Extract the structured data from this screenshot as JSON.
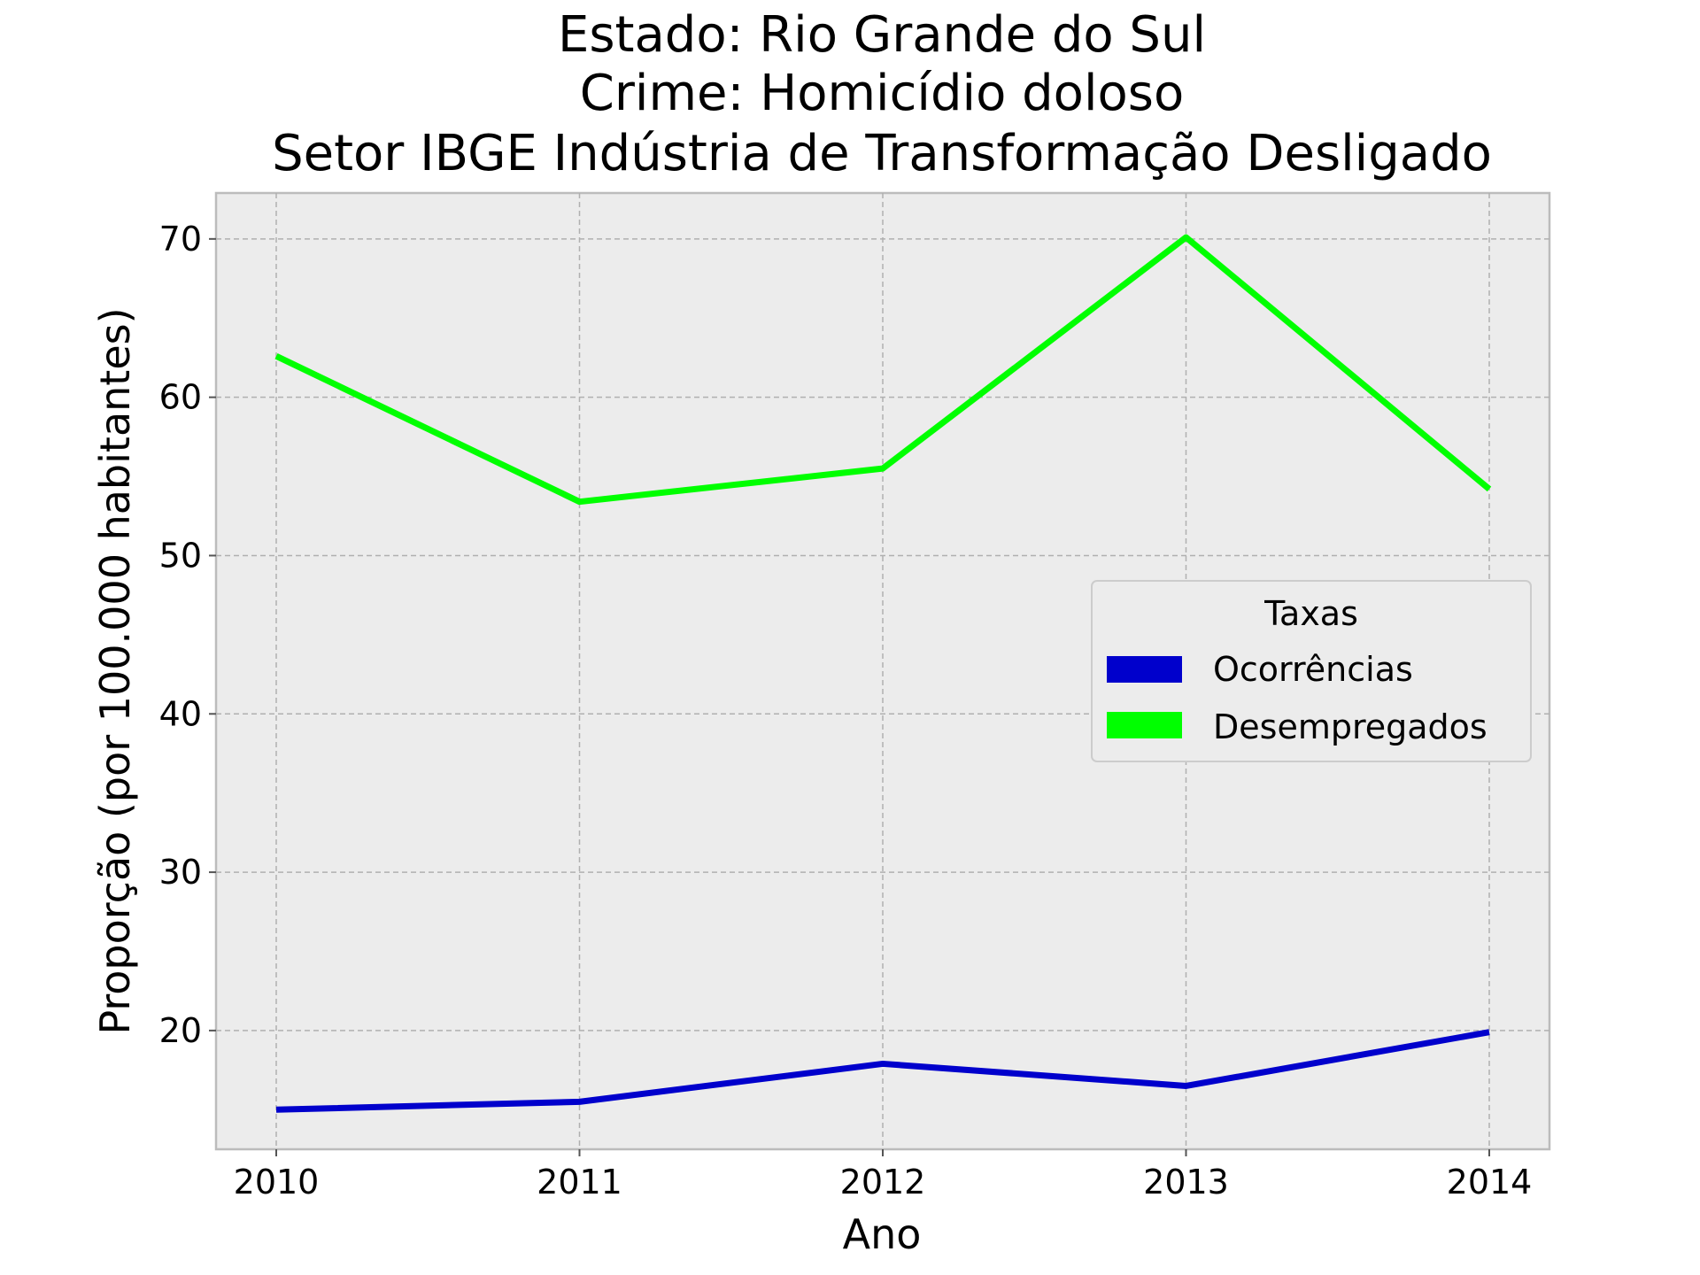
{
  "chart_data": {
    "type": "line",
    "title_lines": [
      "Estado: Rio Grande do Sul",
      "Crime: Homicídio doloso",
      "Setor IBGE  Indústria de Transformação   Desligado"
    ],
    "xlabel": "Ano",
    "ylabel": "Proporção (por 100.000 habitantes)",
    "x": [
      2010,
      2011,
      2012,
      2013,
      2014
    ],
    "x_tick_labels": [
      "2010",
      "2011",
      "2012",
      "2013",
      "2014"
    ],
    "y_ticks": [
      20,
      30,
      40,
      50,
      60,
      70
    ],
    "ylim": [
      12.5,
      72.9
    ],
    "grid": true,
    "legend": {
      "title": "Taxas",
      "placement": "center-right"
    },
    "series": [
      {
        "name": "Ocorrências",
        "color": "#0000cc",
        "values": [
          15.0,
          15.5,
          17.9,
          16.5,
          19.9
        ]
      },
      {
        "name": "Desempregados",
        "color": "#00ff00",
        "values": [
          62.6,
          53.4,
          55.5,
          70.1,
          54.2
        ]
      }
    ],
    "background_color": "#ececec"
  }
}
